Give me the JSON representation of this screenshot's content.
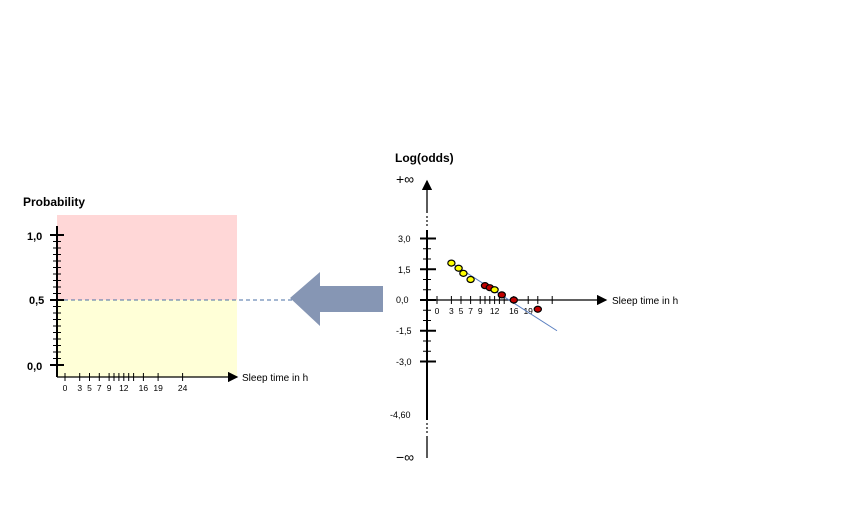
{
  "left_panel": {
    "y_title": "Probability",
    "x_title": "Sleep time in h",
    "y_ticks": [
      "1,0",
      "0,5",
      "0,0"
    ],
    "x_ticks": [
      "0",
      "3",
      "5",
      "7",
      "9",
      "12",
      "16",
      "19",
      "24"
    ],
    "upper_region_color": "#ffd7d7",
    "lower_region_color": "#ffffd7"
  },
  "arrow": {
    "color": "#8696b4",
    "direction": "left"
  },
  "right_panel": {
    "y_title": "Log(odds)",
    "x_title": "Sleep time in h",
    "plus_inf": "+∞",
    "minus_inf": "−∞",
    "y_ticks": [
      "3,0",
      "1,5",
      "0,0",
      "-1,5",
      "-3,0",
      "-4,60"
    ],
    "x_ticks": [
      "0",
      "3",
      "5",
      "7",
      "9",
      "12",
      "16",
      "19"
    ]
  },
  "chart_data": {
    "type": "scatter",
    "xlabel": "Sleep time in h",
    "ylabel": "Log(odds)",
    "points": [
      {
        "x": 3,
        "y": 1.8,
        "color": "#ffff00"
      },
      {
        "x": 4.5,
        "y": 1.55,
        "color": "#ffff00"
      },
      {
        "x": 5.5,
        "y": 1.3,
        "color": "#ffff00"
      },
      {
        "x": 7,
        "y": 1.0,
        "color": "#ffff00"
      },
      {
        "x": 10,
        "y": 0.7,
        "color": "#c00000"
      },
      {
        "x": 11,
        "y": 0.6,
        "color": "#c00000"
      },
      {
        "x": 12,
        "y": 0.5,
        "color": "#ffff00"
      },
      {
        "x": 13.5,
        "y": 0.25,
        "color": "#c00000"
      },
      {
        "x": 16,
        "y": 0.0,
        "color": "#c00000"
      },
      {
        "x": 21,
        "y": -0.45,
        "color": "#c00000"
      }
    ],
    "regression_line": {
      "x0": 3,
      "y0": 1.8,
      "x1": 25,
      "y1": -1.5,
      "color": "#5a7fc0"
    }
  }
}
